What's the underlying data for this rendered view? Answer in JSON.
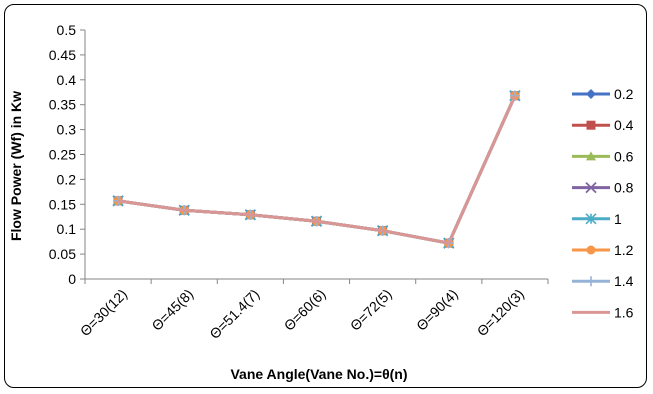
{
  "chart_data": {
    "type": "line",
    "xlabel": "Vane Angle(Vane No.)=θ(n)",
    "ylabel": "Flow Power (Wf) in Kw",
    "categories": [
      "Θ=30(12)",
      "Θ=45(8)",
      "Θ=51.4(7)",
      "Θ=60(6)",
      "Θ=72(5)",
      "Θ=90(4)",
      "Θ=120(3)"
    ],
    "ylim": [
      0,
      0.5
    ],
    "yticks": [
      "0",
      "0.05",
      "0.1",
      "0.15",
      "0.2",
      "0.25",
      "0.3",
      "0.35",
      "0.4",
      "0.45",
      "0.5"
    ],
    "grid": false,
    "legend": "right",
    "series": [
      {
        "name": "0.2",
        "color": "#4472C4",
        "marker": "diamond",
        "values": [
          0.157,
          0.138,
          0.129,
          0.116,
          0.097,
          0.072,
          0.368
        ]
      },
      {
        "name": "0.4",
        "color": "#C0504D",
        "marker": "square",
        "values": [
          0.157,
          0.138,
          0.129,
          0.116,
          0.097,
          0.072,
          0.368
        ]
      },
      {
        "name": "0.6",
        "color": "#9BBB59",
        "marker": "triangle",
        "values": [
          0.157,
          0.138,
          0.129,
          0.116,
          0.097,
          0.072,
          0.368
        ]
      },
      {
        "name": "0.8",
        "color": "#8064A2",
        "marker": "x",
        "values": [
          0.157,
          0.138,
          0.129,
          0.116,
          0.097,
          0.072,
          0.368
        ]
      },
      {
        "name": "1",
        "color": "#4BACC6",
        "marker": "star",
        "values": [
          0.157,
          0.138,
          0.129,
          0.116,
          0.097,
          0.072,
          0.368
        ]
      },
      {
        "name": "1.2",
        "color": "#F79646",
        "marker": "circle",
        "values": [
          0.157,
          0.138,
          0.129,
          0.116,
          0.097,
          0.072,
          0.368
        ]
      },
      {
        "name": "1.4",
        "color": "#95B3D7",
        "marker": "plus",
        "values": [
          0.157,
          0.138,
          0.129,
          0.116,
          0.097,
          0.072,
          0.368
        ]
      },
      {
        "name": "1.6",
        "color": "#D99694",
        "marker": "none",
        "values": [
          0.157,
          0.138,
          0.129,
          0.116,
          0.097,
          0.072,
          0.368
        ]
      }
    ]
  }
}
